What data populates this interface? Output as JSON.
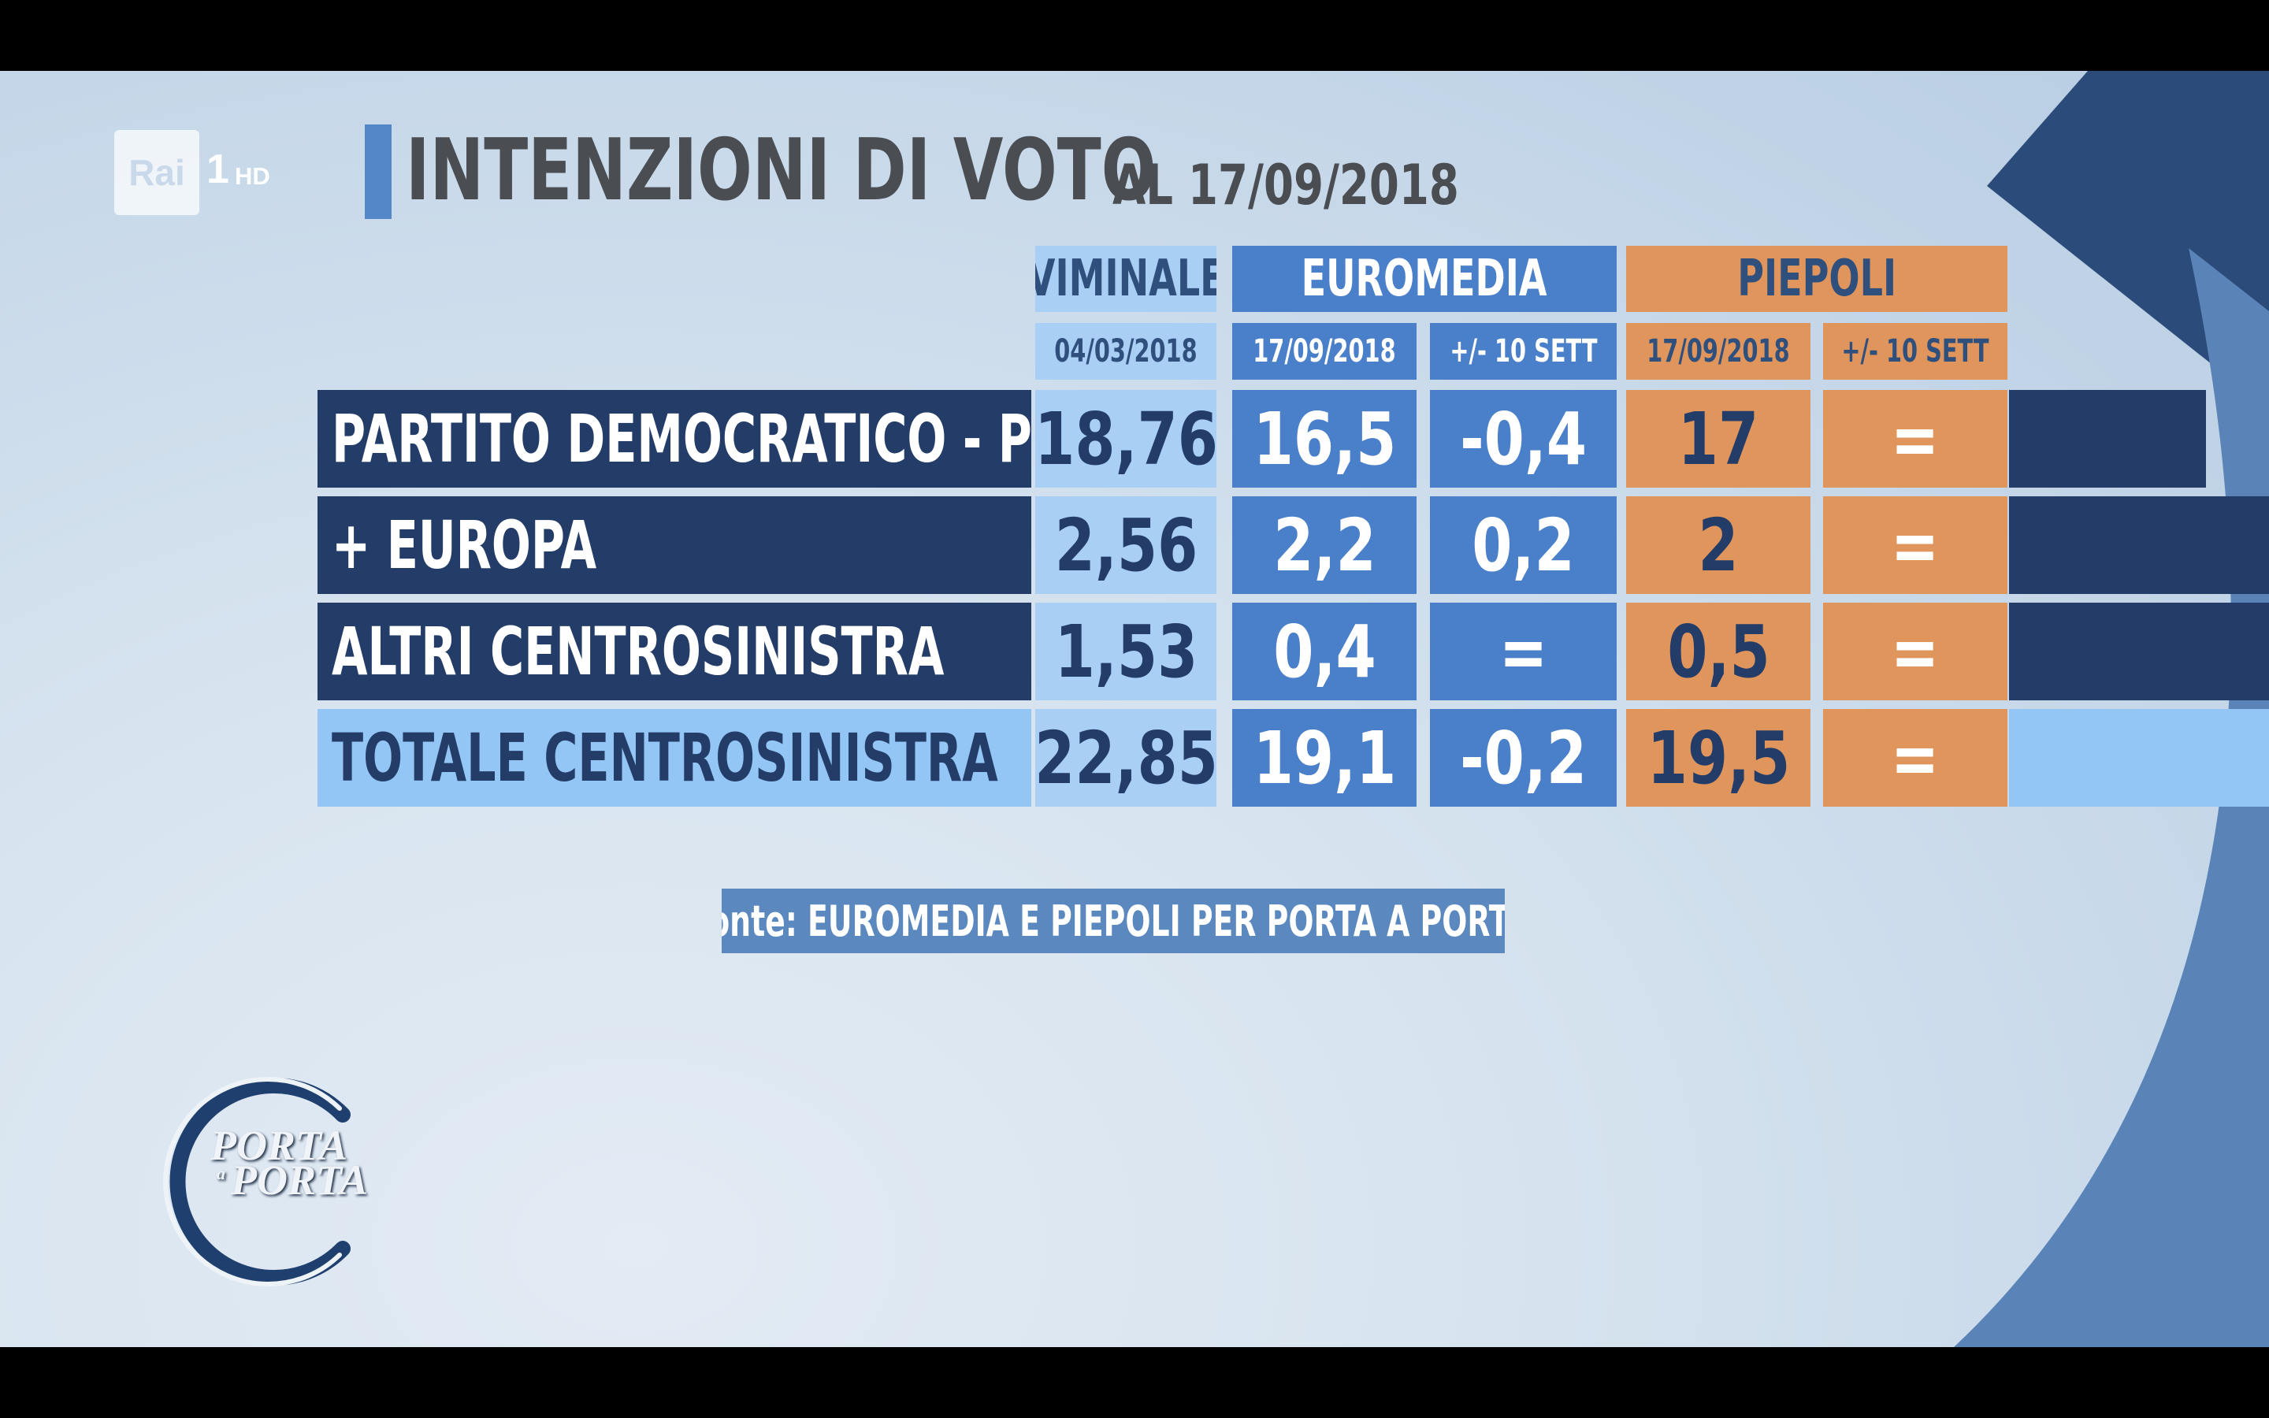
{
  "broadcaster": {
    "name": "Rai",
    "channel": "1",
    "quality": "HD"
  },
  "title": {
    "main": "INTENZIONI DI VOTO",
    "date": "AL 17/09/2018"
  },
  "table": {
    "columns": {
      "viminale": {
        "name": "VIMINALE",
        "date": "04/03/2018"
      },
      "euromedia": {
        "name": "EUROMEDIA",
        "date": "17/09/2018",
        "delta": "+/- 10 SETT"
      },
      "piepoli": {
        "name": "PIEPOLI",
        "date": "17/09/2018",
        "delta": "+/- 10 SETT"
      }
    },
    "rows": [
      {
        "label": "PARTITO DEMOCRATICO - PSE",
        "viminale": "18,76",
        "euromedia": "16,5",
        "euromedia_delta": "-0,4",
        "piepoli": "17",
        "piepoli_delta": "="
      },
      {
        "label": "+ EUROPA",
        "viminale": "2,56",
        "euromedia": "2,2",
        "euromedia_delta": "0,2",
        "piepoli": "2",
        "piepoli_delta": "="
      },
      {
        "label": "ALTRI CENTROSINISTRA",
        "viminale": "1,53",
        "euromedia": "0,4",
        "euromedia_delta": "=",
        "piepoli": "0,5",
        "piepoli_delta": "="
      },
      {
        "label": "TOTALE CENTROSINISTRA",
        "viminale": "22,85",
        "euromedia": "19,1",
        "euromedia_delta": "-0,2",
        "piepoli": "19,5",
        "piepoli_delta": "="
      }
    ]
  },
  "source": "fonte: EUROMEDIA E PIEPOLI PER PORTA A PORTA",
  "show_logo": {
    "line1": "PORTA",
    "connector": "a",
    "line2": "PORTA"
  },
  "colors": {
    "navy": "#233d68",
    "euromedia_blue": "#4a7fc9",
    "viminale_light": "#a9cff5",
    "total_light": "#93c6f5",
    "piepoli_orange": "#e0955d"
  }
}
